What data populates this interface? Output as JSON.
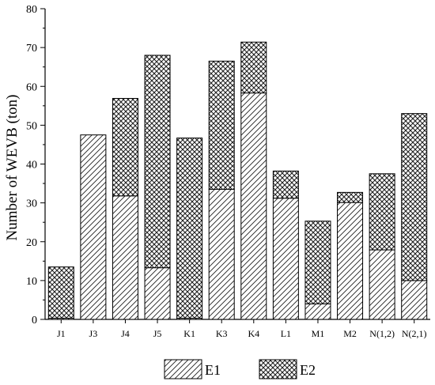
{
  "chart_data": {
    "type": "bar",
    "stacked": true,
    "title": "",
    "xlabel": "",
    "ylabel": "Number of WEVB (ton)",
    "ylim": [
      0,
      80
    ],
    "yticks": [
      0,
      10,
      20,
      30,
      40,
      50,
      60,
      70,
      80
    ],
    "grid": false,
    "legend_position": "bottom",
    "categories": [
      "J1",
      "J3",
      "J4",
      "J5",
      "K1",
      "K3",
      "K4",
      "L1",
      "M1",
      "M2",
      "N(1,2)",
      "N(2,1)"
    ],
    "series": [
      {
        "name": "E1",
        "pattern": "diagonal-hatch",
        "values": [
          0.3,
          47.5,
          31.8,
          13.3,
          0.3,
          33.5,
          58.3,
          31.2,
          4.0,
          30.1,
          17.9,
          10.0
        ]
      },
      {
        "name": "E2",
        "pattern": "crosshatch-dots",
        "values": [
          13.2,
          0,
          25.1,
          54.7,
          46.4,
          33.0,
          13.1,
          7.0,
          21.3,
          2.6,
          19.6,
          43.0
        ]
      }
    ]
  }
}
